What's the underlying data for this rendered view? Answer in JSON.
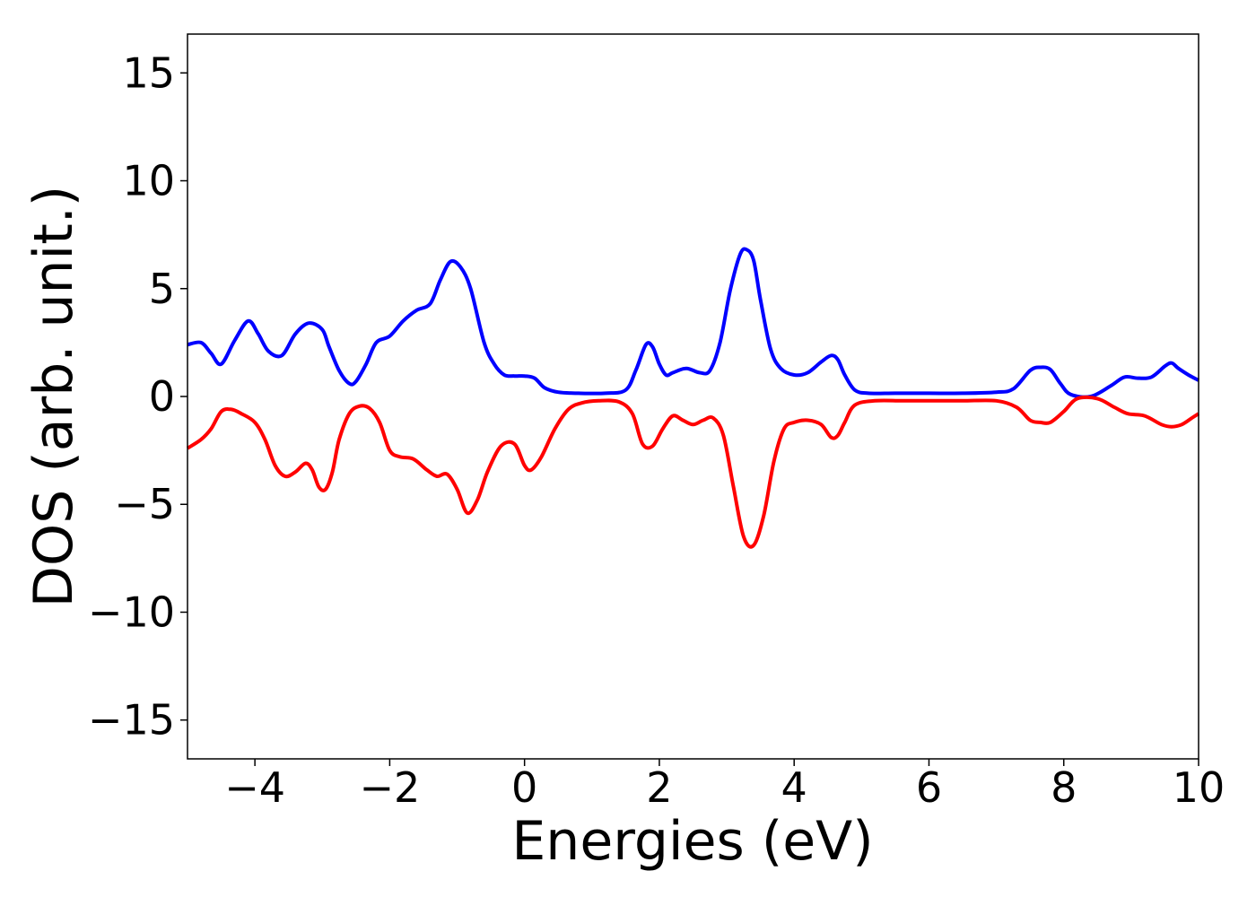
{
  "chart_data": {
    "type": "line",
    "title": "",
    "xlabel": "Energies (eV)",
    "ylabel": "DOS (arb. unit.)",
    "xlim": [
      -5,
      10
    ],
    "ylim": [
      -16.8,
      16.8
    ],
    "xticks": [
      -4,
      -2,
      0,
      2,
      4,
      6,
      8,
      10
    ],
    "yticks": [
      -15,
      -10,
      -5,
      0,
      5,
      10,
      15
    ],
    "xtick_labels": [
      "−4",
      "−2",
      "0",
      "2",
      "4",
      "6",
      "8",
      "10"
    ],
    "ytick_labels": [
      "−15",
      "−10",
      "−5",
      "0",
      "5",
      "10",
      "15"
    ],
    "grid": false,
    "legend": "none",
    "series": [
      {
        "color": "#0000ff",
        "x": [
          -5.0,
          -4.8,
          -4.65,
          -4.5,
          -4.3,
          -4.1,
          -3.95,
          -3.8,
          -3.6,
          -3.4,
          -3.2,
          -3.0,
          -2.9,
          -2.75,
          -2.6,
          -2.5,
          -2.35,
          -2.2,
          -2.0,
          -1.8,
          -1.6,
          -1.4,
          -1.25,
          -1.1,
          -0.95,
          -0.8,
          -0.6,
          -0.45,
          -0.3,
          -0.15,
          0.0,
          0.15,
          0.3,
          0.5,
          0.8,
          1.2,
          1.5,
          1.65,
          1.8,
          1.9,
          2.0,
          2.1,
          2.2,
          2.4,
          2.6,
          2.75,
          2.9,
          3.05,
          3.2,
          3.3,
          3.4,
          3.5,
          3.65,
          3.8,
          4.0,
          4.2,
          4.4,
          4.55,
          4.65,
          4.75,
          4.9,
          5.1,
          5.5,
          6.0,
          6.5,
          7.0,
          7.25,
          7.5,
          7.65,
          7.8,
          7.95,
          8.1,
          8.4,
          8.7,
          8.9,
          9.1,
          9.3,
          9.5,
          9.6,
          9.7,
          9.85,
          10.0
        ],
        "y": [
          2.4,
          2.5,
          2.0,
          1.5,
          2.6,
          3.5,
          2.9,
          2.1,
          1.9,
          2.9,
          3.4,
          3.1,
          2.3,
          1.2,
          0.6,
          0.7,
          1.5,
          2.5,
          2.8,
          3.5,
          4.0,
          4.3,
          5.4,
          6.25,
          6.0,
          5.0,
          2.5,
          1.5,
          1.0,
          0.95,
          0.95,
          0.85,
          0.4,
          0.2,
          0.15,
          0.15,
          0.3,
          1.2,
          2.4,
          2.3,
          1.5,
          1.0,
          1.1,
          1.3,
          1.1,
          1.2,
          2.5,
          4.9,
          6.6,
          6.8,
          6.3,
          4.5,
          2.2,
          1.3,
          1.0,
          1.1,
          1.6,
          1.9,
          1.7,
          1.0,
          0.3,
          0.15,
          0.15,
          0.15,
          0.15,
          0.2,
          0.35,
          1.2,
          1.35,
          1.25,
          0.6,
          0.1,
          0.0,
          0.5,
          0.9,
          0.85,
          0.9,
          1.4,
          1.55,
          1.3,
          1.0,
          0.75
        ]
      },
      {
        "color": "#ff0000",
        "x": [
          -5.0,
          -4.8,
          -4.65,
          -4.5,
          -4.35,
          -4.2,
          -4.0,
          -3.85,
          -3.7,
          -3.55,
          -3.4,
          -3.25,
          -3.15,
          -3.05,
          -2.95,
          -2.85,
          -2.75,
          -2.6,
          -2.45,
          -2.3,
          -2.15,
          -2.0,
          -1.85,
          -1.65,
          -1.45,
          -1.3,
          -1.15,
          -1.0,
          -0.85,
          -0.7,
          -0.55,
          -0.35,
          -0.15,
          0.0,
          0.1,
          0.25,
          0.45,
          0.65,
          0.85,
          1.1,
          1.4,
          1.6,
          1.75,
          1.9,
          2.05,
          2.2,
          2.35,
          2.5,
          2.65,
          2.8,
          2.95,
          3.1,
          3.25,
          3.4,
          3.55,
          3.7,
          3.85,
          4.0,
          4.2,
          4.4,
          4.55,
          4.65,
          4.75,
          4.9,
          5.2,
          5.6,
          6.0,
          6.5,
          7.0,
          7.3,
          7.5,
          7.65,
          7.8,
          8.0,
          8.2,
          8.5,
          8.75,
          8.95,
          9.2,
          9.45,
          9.6,
          9.75,
          9.9,
          10.0
        ],
        "y": [
          -2.4,
          -2.0,
          -1.5,
          -0.7,
          -0.6,
          -0.8,
          -1.2,
          -2.0,
          -3.2,
          -3.7,
          -3.5,
          -3.1,
          -3.4,
          -4.2,
          -4.3,
          -3.5,
          -2.0,
          -0.8,
          -0.45,
          -0.55,
          -1.2,
          -2.5,
          -2.8,
          -2.9,
          -3.4,
          -3.7,
          -3.6,
          -4.3,
          -5.4,
          -4.8,
          -3.5,
          -2.3,
          -2.2,
          -3.2,
          -3.4,
          -2.8,
          -1.5,
          -0.6,
          -0.3,
          -0.2,
          -0.25,
          -0.8,
          -2.2,
          -2.3,
          -1.5,
          -0.9,
          -1.1,
          -1.3,
          -1.1,
          -1.0,
          -1.8,
          -4.2,
          -6.5,
          -6.9,
          -5.5,
          -3.0,
          -1.5,
          -1.2,
          -1.1,
          -1.3,
          -1.9,
          -1.8,
          -1.2,
          -0.4,
          -0.2,
          -0.2,
          -0.2,
          -0.2,
          -0.2,
          -0.5,
          -1.1,
          -1.2,
          -1.2,
          -0.7,
          -0.1,
          -0.1,
          -0.5,
          -0.8,
          -0.9,
          -1.3,
          -1.4,
          -1.3,
          -1.0,
          -0.8
        ]
      }
    ]
  }
}
